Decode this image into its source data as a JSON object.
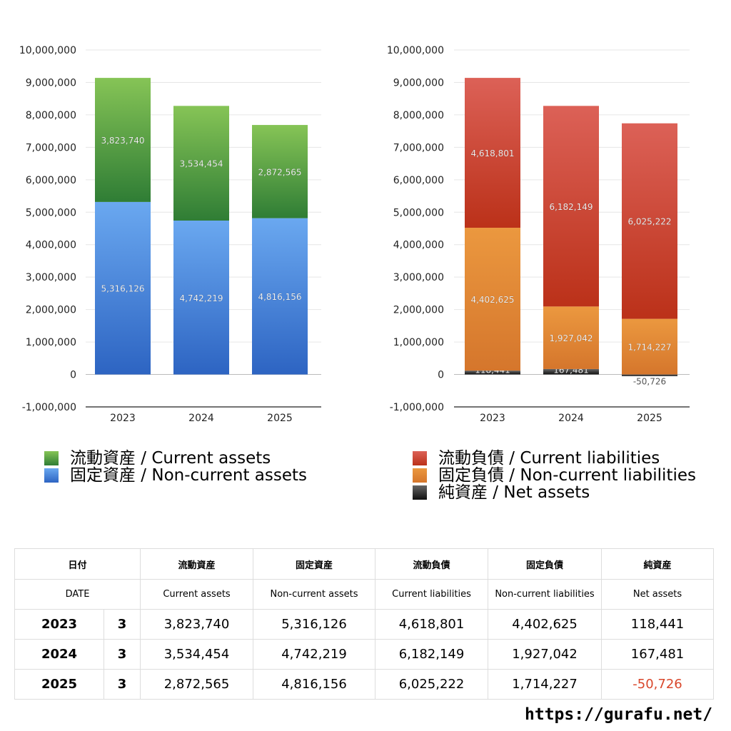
{
  "colors": {
    "current_assets": "#4a9a3a",
    "non_current_assets": "#4a86d8",
    "current_liabilities": "#c8402c",
    "non_current_liabilities": "#e28a34",
    "net_assets": "#333333",
    "negative": "#d9472b"
  },
  "chart_data": [
    {
      "type": "bar",
      "stacked": true,
      "categories": [
        "2023",
        "2024",
        "2025"
      ],
      "series": [
        {
          "name": "固定資産 / Non-current assets",
          "key": "non_current_assets",
          "values": [
            5316126,
            4742219,
            4816156
          ],
          "labels": [
            "5,316,126",
            "4,742,219",
            "4,816,156"
          ]
        },
        {
          "name": "流動資産 / Current assets",
          "key": "current_assets",
          "values": [
            3823740,
            3534454,
            2872565
          ],
          "labels": [
            "3,823,740",
            "3,534,454",
            "2,872,565"
          ]
        }
      ],
      "ylim": [
        -1000000,
        10000000
      ],
      "yticks": [
        "10,000,000",
        "9,000,000",
        "8,000,000",
        "7,000,000",
        "6,000,000",
        "5,000,000",
        "4,000,000",
        "3,000,000",
        "2,000,000",
        "1,000,000",
        "0",
        "-1,000,000"
      ],
      "grid": true,
      "legend_position": "bottom"
    },
    {
      "type": "bar",
      "stacked": true,
      "categories": [
        "2023",
        "2024",
        "2025"
      ],
      "series": [
        {
          "name": "純資産 / Net assets",
          "key": "net_assets",
          "values": [
            118441,
            167481,
            -50726
          ],
          "labels": [
            "118,441",
            "167,481",
            "-50,726"
          ]
        },
        {
          "name": "固定負債 / Non-current liabilities",
          "key": "non_current_liabilities",
          "values": [
            4402625,
            1927042,
            1714227
          ],
          "labels": [
            "4,402,625",
            "1,927,042",
            "1,714,227"
          ]
        },
        {
          "name": "流動負債 / Current liabilities",
          "key": "current_liabilities",
          "values": [
            4618801,
            6182149,
            6025222
          ],
          "labels": [
            "4,618,801",
            "6,182,149",
            "6,025,222"
          ]
        }
      ],
      "ylim": [
        -1000000,
        10000000
      ],
      "yticks": [
        "10,000,000",
        "9,000,000",
        "8,000,000",
        "7,000,000",
        "6,000,000",
        "5,000,000",
        "4,000,000",
        "3,000,000",
        "2,000,000",
        "1,000,000",
        "0",
        "-1,000,000"
      ],
      "grid": true,
      "legend_position": "bottom"
    }
  ],
  "legend_left": [
    {
      "label": "流動資産 / Current assets",
      "color": "#4a9a3a"
    },
    {
      "label": "固定資産 / Non-current assets",
      "color": "#4a86d8"
    }
  ],
  "legend_right": [
    {
      "label": "流動負債 / Current liabilities",
      "color": "#c8402c"
    },
    {
      "label": "固定負債 / Non-current liabilities",
      "color": "#e28a34"
    },
    {
      "label": "純資産 / Net assets",
      "color": "#333333"
    }
  ],
  "table": {
    "header_jp": [
      "日付",
      "流動資産",
      "固定資産",
      "流動負債",
      "固定負債",
      "純資産"
    ],
    "header_en": [
      "DATE",
      "Current assets",
      "Non-current assets",
      "Current liabilities",
      "Non-current liabilities",
      "Net assets"
    ],
    "rows": [
      {
        "year": "2023",
        "month": "3",
        "current_assets": "3,823,740",
        "non_current_assets": "5,316,126",
        "current_liabilities": "4,618,801",
        "non_current_liabilities": "4,402,625",
        "net_assets": "118,441"
      },
      {
        "year": "2024",
        "month": "3",
        "current_assets": "3,534,454",
        "non_current_assets": "4,742,219",
        "current_liabilities": "6,182,149",
        "non_current_liabilities": "1,927,042",
        "net_assets": "167,481"
      },
      {
        "year": "2025",
        "month": "3",
        "current_assets": "2,872,565",
        "non_current_assets": "4,816,156",
        "current_liabilities": "6,025,222",
        "non_current_liabilities": "1,714,227",
        "net_assets": "-50,726"
      }
    ]
  },
  "site_url": "https://gurafu.net/"
}
